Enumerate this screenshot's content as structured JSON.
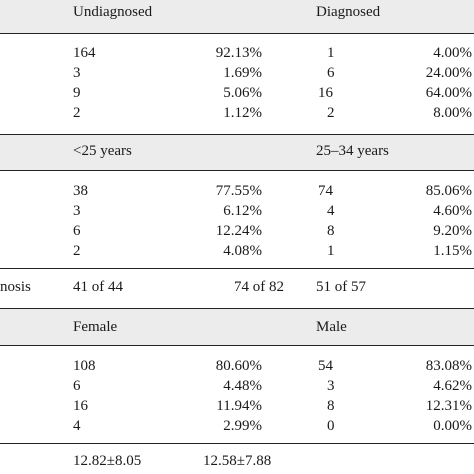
{
  "sections": [
    {
      "id": "diagnosis",
      "headers": [
        "Undiagnosed",
        "Diagnosed"
      ],
      "rows": [
        [
          "164",
          "92.13%",
          "1",
          "4.00%"
        ],
        [
          "3",
          "1.69%",
          "6",
          "24.00%"
        ],
        [
          "9",
          "5.06%",
          "16",
          "64.00%"
        ],
        [
          "2",
          "1.12%",
          "2",
          "8.00%"
        ]
      ]
    },
    {
      "id": "age",
      "headers": [
        "<25 years",
        "25–34 years"
      ],
      "rows": [
        [
          "38",
          "77.55%",
          "74",
          "85.06%"
        ],
        [
          "3",
          "6.12%",
          "4",
          "4.60%"
        ],
        [
          "6",
          "12.24%",
          "8",
          "9.20%"
        ],
        [
          "2",
          "4.08%",
          "1",
          "1.15%"
        ]
      ]
    },
    {
      "id": "sex",
      "headers": [
        "Female",
        "Male"
      ],
      "rows": [
        [
          "108",
          "80.60%",
          "54",
          "83.08%"
        ],
        [
          "6",
          "4.48%",
          "3",
          "4.62%"
        ],
        [
          "16",
          "11.94%",
          "8",
          "12.31%"
        ],
        [
          "4",
          "2.99%",
          "0",
          "0.00%"
        ]
      ]
    }
  ],
  "diagnosis_row": {
    "label": "nosis",
    "values": [
      "41 of 44",
      "74 of 82",
      "51 of 57"
    ]
  },
  "bottom_row": {
    "values": [
      "12.82±8.05",
      "12.58±7.88"
    ]
  }
}
